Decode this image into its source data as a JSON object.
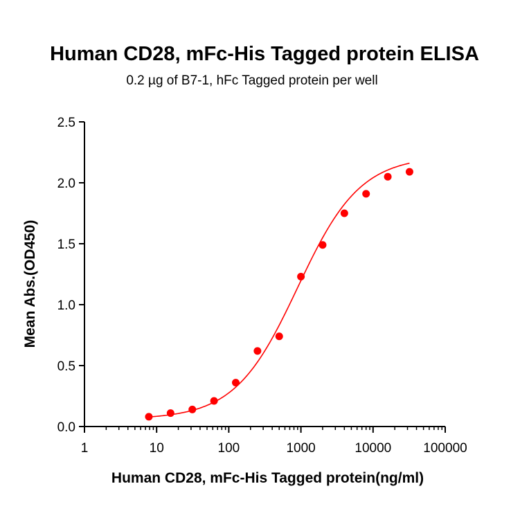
{
  "chart_data": {
    "type": "scatter",
    "title": "Human CD28, mFc-His Tagged protein ELISA",
    "subtitle": "0.2 µg of B7-1, hFc Tagged protein per well",
    "xlabel": "Human CD28, mFc-His Tagged protein(ng/ml)",
    "ylabel": "Mean Abs.(OD450)",
    "x_scale": "log",
    "xlim": [
      1,
      100000
    ],
    "ylim": [
      0,
      2.5
    ],
    "x_ticks": [
      "1",
      "10",
      "100",
      "1000",
      "10000",
      "100000"
    ],
    "y_ticks": [
      "0.0",
      "0.5",
      "1.0",
      "1.5",
      "2.0",
      "2.5"
    ],
    "grid": false,
    "color": "#ff0000",
    "series": [
      {
        "x": [
          7.8,
          15.6,
          31.25,
          62.5,
          125,
          250,
          500,
          1000,
          2000,
          4000,
          8000,
          16000,
          32000
        ],
        "y": [
          0.08,
          0.11,
          0.14,
          0.21,
          0.36,
          0.62,
          0.74,
          1.23,
          1.49,
          1.75,
          1.91,
          2.05,
          2.09
        ],
        "fit": "4PL sigmoidal curve"
      }
    ]
  }
}
